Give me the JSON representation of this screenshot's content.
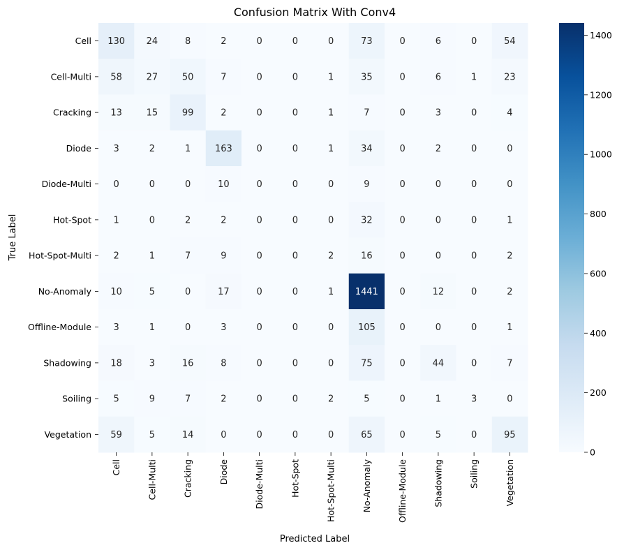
{
  "chart_data": {
    "type": "heatmap",
    "title": "Confusion Matrix With Conv4",
    "xlabel": "Predicted Label",
    "ylabel": "True Label",
    "x_categories": [
      "Cell",
      "Cell-Multi",
      "Cracking",
      "Diode",
      "Diode-Multi",
      "Hot-Spot",
      "Hot-Spot-Multi",
      "No-Anomaly",
      "Offline-Module",
      "Shadowing",
      "Soiling",
      "Vegetation"
    ],
    "y_categories": [
      "Cell",
      "Cell-Multi",
      "Cracking",
      "Diode",
      "Diode-Multi",
      "Hot-Spot",
      "Hot-Spot-Multi",
      "No-Anomaly",
      "Offline-Module",
      "Shadowing",
      "Soiling",
      "Vegetation"
    ],
    "values": [
      [
        130,
        24,
        8,
        2,
        0,
        0,
        0,
        73,
        0,
        6,
        0,
        54
      ],
      [
        58,
        27,
        50,
        7,
        0,
        0,
        1,
        35,
        0,
        6,
        1,
        23
      ],
      [
        13,
        15,
        99,
        2,
        0,
        0,
        1,
        7,
        0,
        3,
        0,
        4
      ],
      [
        3,
        2,
        1,
        163,
        0,
        0,
        1,
        34,
        0,
        2,
        0,
        0
      ],
      [
        0,
        0,
        0,
        10,
        0,
        0,
        0,
        9,
        0,
        0,
        0,
        0
      ],
      [
        1,
        0,
        2,
        2,
        0,
        0,
        0,
        32,
        0,
        0,
        0,
        1
      ],
      [
        2,
        1,
        7,
        9,
        0,
        0,
        2,
        16,
        0,
        0,
        0,
        2
      ],
      [
        10,
        5,
        0,
        17,
        0,
        0,
        1,
        1441,
        0,
        12,
        0,
        2
      ],
      [
        3,
        1,
        0,
        3,
        0,
        0,
        0,
        105,
        0,
        0,
        0,
        1
      ],
      [
        18,
        3,
        16,
        8,
        0,
        0,
        0,
        75,
        0,
        44,
        0,
        7
      ],
      [
        5,
        9,
        7,
        2,
        0,
        0,
        2,
        5,
        0,
        1,
        3,
        0
      ],
      [
        59,
        5,
        14,
        0,
        0,
        0,
        0,
        65,
        0,
        5,
        0,
        95
      ]
    ],
    "colormap": "Blues",
    "colorbar": {
      "min": 0,
      "max": 1441,
      "ticks": [
        0,
        200,
        400,
        600,
        800,
        1000,
        1200,
        1400
      ]
    },
    "grid": false
  }
}
